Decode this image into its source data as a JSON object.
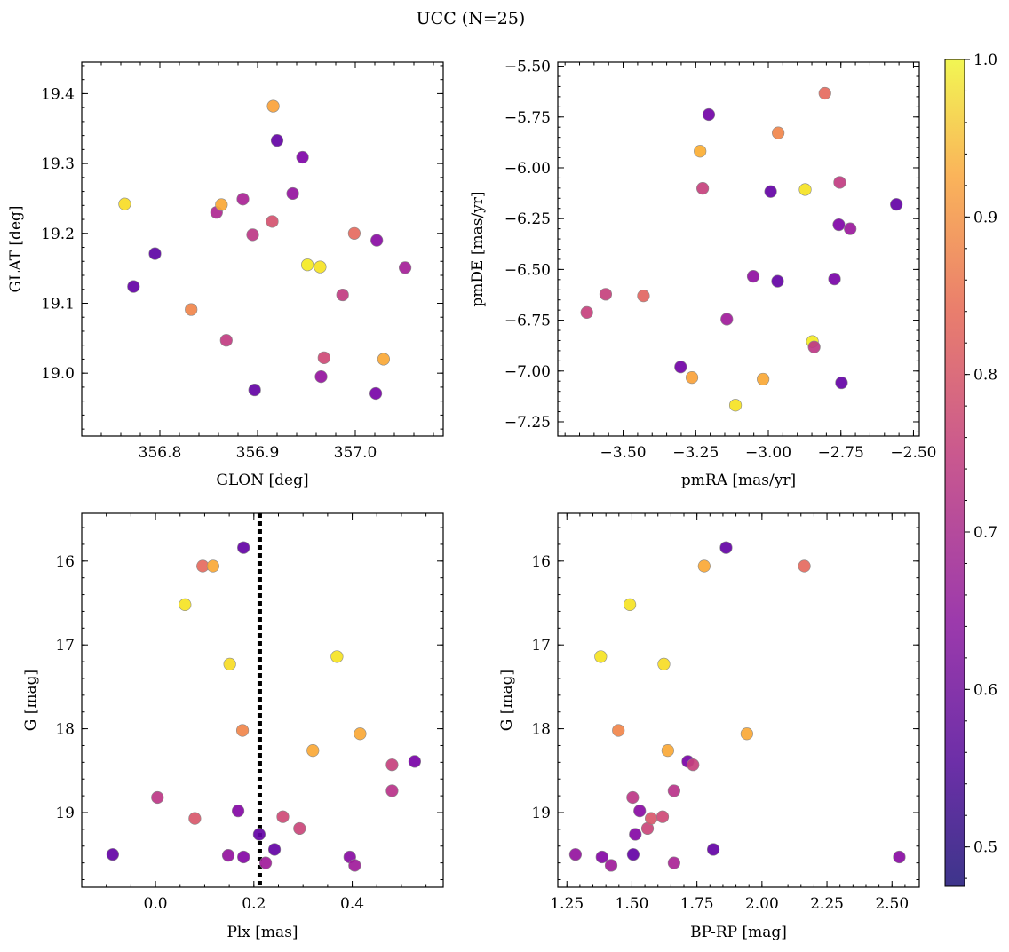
{
  "figure": {
    "title": "UCC (N=25)"
  },
  "colorbar": {
    "min": 0.475,
    "max": 1.0,
    "ticks": [
      0.5,
      0.6,
      0.7,
      0.8,
      0.9,
      1.0
    ],
    "tick_labels": [
      "0.5",
      "0.6",
      "0.7",
      "0.8",
      "0.9",
      "1.0"
    ],
    "colormap": "plasma"
  },
  "chart_data": [
    {
      "type": "scatter",
      "xlabel": "GLON [deg]",
      "ylabel": "GLAT [deg]",
      "xlim": [
        356.72,
        357.09
      ],
      "ylim": [
        18.91,
        19.445
      ],
      "xticks": [
        356.8,
        356.9,
        357.0
      ],
      "xtick_labels": [
        "356.8",
        "356.9",
        "357.0"
      ],
      "yticks": [
        19.0,
        19.1,
        19.2,
        19.3,
        19.4
      ],
      "ytick_labels": [
        "19.0",
        "19.1",
        "19.2",
        "19.3",
        "19.4"
      ],
      "x_minor_step": 0.02,
      "y_minor_step": 0.02,
      "points": [
        {
          "x": 356.764,
          "y": 19.242,
          "p": 0.96
        },
        {
          "x": 356.795,
          "y": 19.171,
          "p": 0.49
        },
        {
          "x": 356.773,
          "y": 19.124,
          "p": 0.5
        },
        {
          "x": 356.832,
          "y": 19.091,
          "p": 0.82
        },
        {
          "x": 356.858,
          "y": 19.23,
          "p": 0.63
        },
        {
          "x": 356.863,
          "y": 19.241,
          "p": 0.88
        },
        {
          "x": 356.868,
          "y": 19.047,
          "p": 0.67
        },
        {
          "x": 356.885,
          "y": 19.249,
          "p": 0.62
        },
        {
          "x": 356.895,
          "y": 19.198,
          "p": 0.66
        },
        {
          "x": 356.897,
          "y": 18.976,
          "p": 0.5
        },
        {
          "x": 356.915,
          "y": 19.217,
          "p": 0.72
        },
        {
          "x": 356.916,
          "y": 19.382,
          "p": 0.87
        },
        {
          "x": 356.92,
          "y": 19.333,
          "p": 0.5
        },
        {
          "x": 356.936,
          "y": 19.257,
          "p": 0.58
        },
        {
          "x": 356.946,
          "y": 19.309,
          "p": 0.54
        },
        {
          "x": 356.951,
          "y": 19.155,
          "p": 0.98
        },
        {
          "x": 356.964,
          "y": 19.152,
          "p": 0.97
        },
        {
          "x": 356.965,
          "y": 18.995,
          "p": 0.58
        },
        {
          "x": 356.968,
          "y": 19.022,
          "p": 0.7
        },
        {
          "x": 356.987,
          "y": 19.112,
          "p": 0.67
        },
        {
          "x": 356.999,
          "y": 19.2,
          "p": 0.77
        },
        {
          "x": 357.022,
          "y": 19.19,
          "p": 0.56
        },
        {
          "x": 357.021,
          "y": 18.971,
          "p": 0.53
        },
        {
          "x": 357.029,
          "y": 19.02,
          "p": 0.88
        },
        {
          "x": 357.051,
          "y": 19.151,
          "p": 0.61
        }
      ]
    },
    {
      "type": "scatter",
      "xlabel": "pmRA [mas/yr]",
      "ylabel": "pmDE [mas/yr]",
      "xlim": [
        -3.725,
        -2.48
      ],
      "ylim": [
        -7.32,
        -5.48
      ],
      "xticks": [
        -3.5,
        -3.25,
        -3.0,
        -2.75,
        -2.5
      ],
      "xtick_labels": [
        "−3.50",
        "−3.25",
        "−3.00",
        "−2.75",
        "−2.50"
      ],
      "yticks": [
        -7.25,
        -7.0,
        -6.75,
        -6.5,
        -6.25,
        -6.0,
        -5.75,
        -5.5
      ],
      "ytick_labels": [
        "−7.25",
        "−7.00",
        "−6.75",
        "−6.50",
        "−6.25",
        "−6.00",
        "−5.75",
        "−5.50"
      ],
      "x_minor_step": 0.05,
      "y_minor_step": 0.05,
      "points": [
        {
          "x": -3.625,
          "y": -6.712,
          "p": 0.68
        },
        {
          "x": -3.56,
          "y": -6.622,
          "p": 0.68
        },
        {
          "x": -3.43,
          "y": -6.63,
          "p": 0.76
        },
        {
          "x": -3.302,
          "y": -6.98,
          "p": 0.52
        },
        {
          "x": -3.263,
          "y": -7.032,
          "p": 0.87
        },
        {
          "x": -3.235,
          "y": -5.918,
          "p": 0.89
        },
        {
          "x": -3.226,
          "y": -6.101,
          "p": 0.68
        },
        {
          "x": -3.205,
          "y": -5.738,
          "p": 0.52
        },
        {
          "x": -3.143,
          "y": -6.745,
          "p": 0.6
        },
        {
          "x": -3.113,
          "y": -7.168,
          "p": 0.97
        },
        {
          "x": -3.052,
          "y": -6.534,
          "p": 0.57
        },
        {
          "x": -3.018,
          "y": -7.04,
          "p": 0.88
        },
        {
          "x": -2.992,
          "y": -6.117,
          "p": 0.5
        },
        {
          "x": -2.968,
          "y": -6.558,
          "p": 0.5
        },
        {
          "x": -2.966,
          "y": -5.828,
          "p": 0.82
        },
        {
          "x": -2.873,
          "y": -6.107,
          "p": 0.97
        },
        {
          "x": -2.848,
          "y": -6.855,
          "p": 0.98
        },
        {
          "x": -2.842,
          "y": -6.882,
          "p": 0.66
        },
        {
          "x": -2.805,
          "y": -5.633,
          "p": 0.77
        },
        {
          "x": -2.772,
          "y": -6.547,
          "p": 0.53
        },
        {
          "x": -2.757,
          "y": -6.28,
          "p": 0.54
        },
        {
          "x": -2.754,
          "y": -6.072,
          "p": 0.67
        },
        {
          "x": -2.748,
          "y": -7.058,
          "p": 0.5
        },
        {
          "x": -2.718,
          "y": -6.3,
          "p": 0.59
        },
        {
          "x": -2.559,
          "y": -6.18,
          "p": 0.5
        }
      ]
    },
    {
      "type": "scatter",
      "xlabel": "Plx [mas]",
      "ylabel": "G [mag]",
      "xlim": [
        -0.15,
        0.585
      ],
      "ylim": [
        19.89,
        15.43
      ],
      "xticks": [
        0.0,
        0.2,
        0.4
      ],
      "xtick_labels": [
        "0.0",
        "0.2",
        "0.4"
      ],
      "yticks": [
        16,
        17,
        18,
        19
      ],
      "ytick_labels": [
        "16",
        "17",
        "18",
        "19"
      ],
      "x_minor_step": 0.05,
      "y_minor_step": 0.2,
      "vline": {
        "x": 0.212,
        "style": "dotted"
      },
      "points": [
        {
          "x": -0.087,
          "y": 19.5,
          "p": 0.5
        },
        {
          "x": 0.004,
          "y": 18.82,
          "p": 0.66
        },
        {
          "x": 0.06,
          "y": 16.52,
          "p": 0.97
        },
        {
          "x": 0.08,
          "y": 19.07,
          "p": 0.73
        },
        {
          "x": 0.096,
          "y": 16.06,
          "p": 0.77
        },
        {
          "x": 0.117,
          "y": 16.06,
          "p": 0.88
        },
        {
          "x": 0.148,
          "y": 19.51,
          "p": 0.58
        },
        {
          "x": 0.151,
          "y": 17.23,
          "p": 0.96
        },
        {
          "x": 0.168,
          "y": 18.98,
          "p": 0.55
        },
        {
          "x": 0.177,
          "y": 18.02,
          "p": 0.82
        },
        {
          "x": 0.179,
          "y": 15.84,
          "p": 0.5
        },
        {
          "x": 0.179,
          "y": 19.53,
          "p": 0.55
        },
        {
          "x": 0.211,
          "y": 19.26,
          "p": 0.5
        },
        {
          "x": 0.224,
          "y": 19.6,
          "p": 0.6
        },
        {
          "x": 0.242,
          "y": 19.44,
          "p": 0.5
        },
        {
          "x": 0.259,
          "y": 19.05,
          "p": 0.7
        },
        {
          "x": 0.293,
          "y": 19.19,
          "p": 0.69
        },
        {
          "x": 0.32,
          "y": 18.26,
          "p": 0.88
        },
        {
          "x": 0.369,
          "y": 17.14,
          "p": 0.97
        },
        {
          "x": 0.395,
          "y": 19.53,
          "p": 0.56
        },
        {
          "x": 0.405,
          "y": 19.63,
          "p": 0.6
        },
        {
          "x": 0.416,
          "y": 18.06,
          "p": 0.88
        },
        {
          "x": 0.481,
          "y": 18.43,
          "p": 0.68
        },
        {
          "x": 0.481,
          "y": 18.74,
          "p": 0.65
        },
        {
          "x": 0.527,
          "y": 18.39,
          "p": 0.53
        }
      ]
    },
    {
      "type": "scatter",
      "xlabel": "BP-RP [mag]",
      "ylabel": "G [mag]",
      "xlim": [
        1.215,
        2.605
      ],
      "ylim": [
        19.89,
        15.43
      ],
      "xticks": [
        1.25,
        1.5,
        1.75,
        2.0,
        2.25,
        2.5
      ],
      "xtick_labels": [
        "1.25",
        "1.50",
        "1.75",
        "2.00",
        "2.25",
        "2.50"
      ],
      "yticks": [
        16,
        17,
        18,
        19
      ],
      "ytick_labels": [
        "16",
        "17",
        "18",
        "19"
      ],
      "x_minor_step": 0.05,
      "y_minor_step": 0.2,
      "points": [
        {
          "x": 1.283,
          "y": 19.5,
          "p": 0.58
        },
        {
          "x": 1.38,
          "y": 17.14,
          "p": 0.97
        },
        {
          "x": 1.385,
          "y": 19.53,
          "p": 0.55
        },
        {
          "x": 1.42,
          "y": 19.63,
          "p": 0.6
        },
        {
          "x": 1.448,
          "y": 18.02,
          "p": 0.82
        },
        {
          "x": 1.492,
          "y": 16.52,
          "p": 0.97
        },
        {
          "x": 1.503,
          "y": 18.82,
          "p": 0.66
        },
        {
          "x": 1.505,
          "y": 19.5,
          "p": 0.5
        },
        {
          "x": 1.513,
          "y": 19.26,
          "p": 0.55
        },
        {
          "x": 1.53,
          "y": 18.98,
          "p": 0.56
        },
        {
          "x": 1.56,
          "y": 19.19,
          "p": 0.69
        },
        {
          "x": 1.574,
          "y": 19.07,
          "p": 0.73
        },
        {
          "x": 1.618,
          "y": 19.05,
          "p": 0.7
        },
        {
          "x": 1.623,
          "y": 17.23,
          "p": 0.96
        },
        {
          "x": 1.638,
          "y": 18.26,
          "p": 0.88
        },
        {
          "x": 1.662,
          "y": 18.74,
          "p": 0.65
        },
        {
          "x": 1.662,
          "y": 19.6,
          "p": 0.62
        },
        {
          "x": 1.715,
          "y": 18.39,
          "p": 0.53
        },
        {
          "x": 1.735,
          "y": 18.43,
          "p": 0.68
        },
        {
          "x": 1.778,
          "y": 16.06,
          "p": 0.88
        },
        {
          "x": 1.813,
          "y": 19.44,
          "p": 0.5
        },
        {
          "x": 1.862,
          "y": 15.84,
          "p": 0.5
        },
        {
          "x": 1.942,
          "y": 18.06,
          "p": 0.88
        },
        {
          "x": 2.163,
          "y": 16.06,
          "p": 0.77
        },
        {
          "x": 2.528,
          "y": 19.53,
          "p": 0.56
        }
      ]
    }
  ]
}
